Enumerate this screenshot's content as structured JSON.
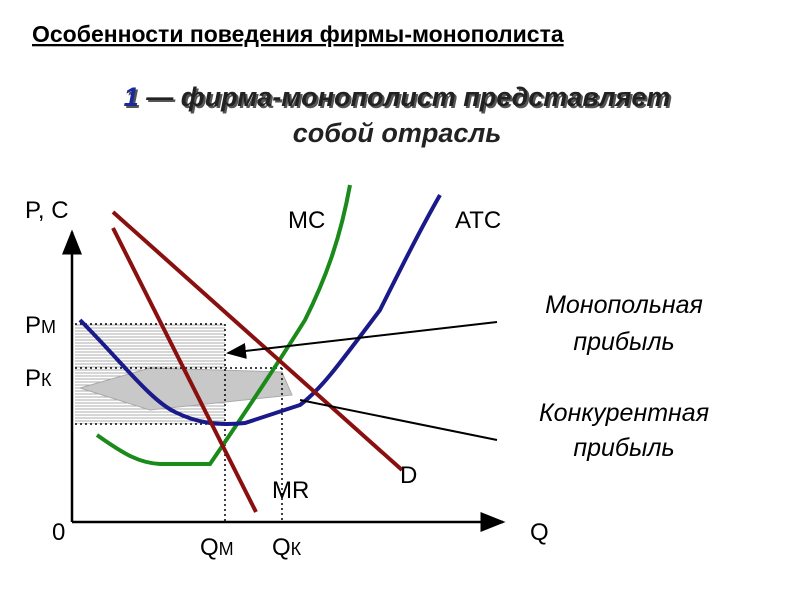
{
  "header": {
    "title": "Особенности поведения фирмы-монополиста",
    "number": "1",
    "line1": " — фирма-монополист представляет",
    "line2": "собой отрасль"
  },
  "labels": {
    "y_axis": "P, C",
    "x_axis": "Q",
    "origin": "0",
    "mc": "MC",
    "atc": "ATC",
    "mr": "MR",
    "d": "D",
    "pm": {
      "main": "P",
      "sub": "М"
    },
    "pk": {
      "main": "P",
      "sub": "К"
    },
    "qm": {
      "main": "Q",
      "sub": "М"
    },
    "qk": {
      "main": "Q",
      "sub": "К"
    }
  },
  "notes": {
    "monopoly": [
      "Монопольная",
      "прибыль"
    ],
    "competitive": [
      "Конкурентная",
      "прибыль"
    ]
  }
}
